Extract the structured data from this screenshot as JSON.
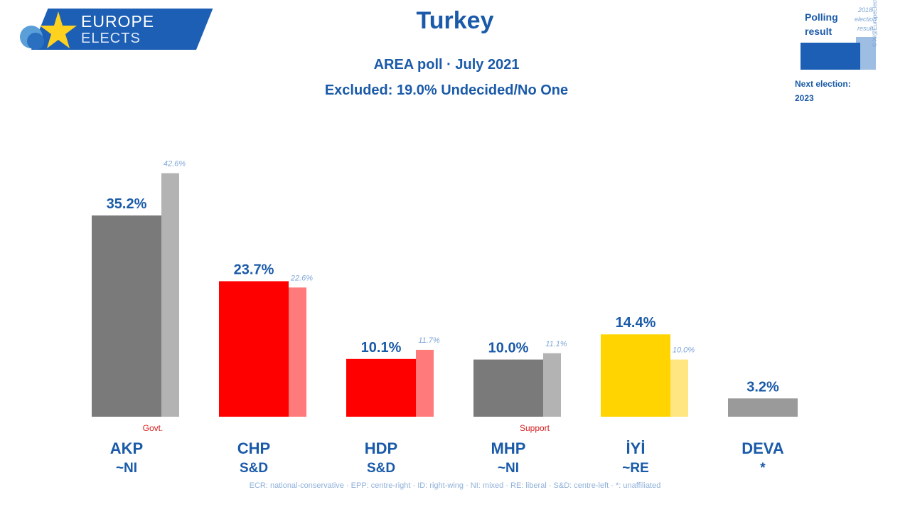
{
  "logo": {
    "line1": "EUROPE",
    "line2": "ELECTS"
  },
  "header": {
    "title": "Turkey",
    "subtitle": "AREA poll · July 2021",
    "excluded": "Excluded: 19.0% Undecided/No One"
  },
  "legend": {
    "polling_label": [
      "Polling",
      "result"
    ],
    "election_label": [
      "2018",
      "election",
      "result"
    ],
    "credit": "© X/@EuropeElects",
    "next_election": [
      "Next election:",
      "2023"
    ]
  },
  "colors": {
    "gray": "#7a7a7a",
    "gray_prev": "#b3b3b3",
    "red": "#ff0000",
    "red_prev": "#ff7a7a",
    "yellow": "#ffd400",
    "yellow_prev": "#ffe680",
    "deva": "#9a9a9a",
    "label_blue": "#1a5aa8",
    "prev_label": "#7ea6d6",
    "note_red": "#d81e1e"
  },
  "chart_data": {
    "type": "bar",
    "categories": [
      "AKP",
      "CHP",
      "HDP",
      "MHP",
      "İYİ",
      "DEVA"
    ],
    "groups": [
      "~NI",
      "S&D",
      "S&D",
      "~NI",
      "~RE",
      "*"
    ],
    "series": [
      {
        "name": "Polling result",
        "values": [
          35.2,
          23.7,
          10.1,
          10.0,
          14.4,
          3.2
        ],
        "labels": [
          "35.2%",
          "23.7%",
          "10.1%",
          "10.0%",
          "14.4%",
          "3.2%"
        ]
      },
      {
        "name": "2018 election result",
        "values": [
          42.6,
          22.6,
          11.7,
          11.1,
          10.0,
          null
        ],
        "labels": [
          "42.6%",
          "22.6%",
          "11.7%",
          "11.1%",
          "10.0%",
          ""
        ]
      }
    ],
    "annotations": [
      "Govt.",
      "",
      "",
      "Support",
      "",
      ""
    ],
    "bar_colors": [
      "gray",
      "red",
      "red",
      "gray",
      "yellow",
      "deva"
    ],
    "prev_colors": [
      "gray_prev",
      "red_prev",
      "red_prev",
      "gray_prev",
      "yellow_prev",
      ""
    ],
    "ylim": [
      0,
      45
    ],
    "grid": false
  },
  "footer": "ECR: national-conservative · EPP: centre-right · ID: right-wing · NI: mixed · RE: liberal · S&D: centre-left · *: unaffiliated"
}
